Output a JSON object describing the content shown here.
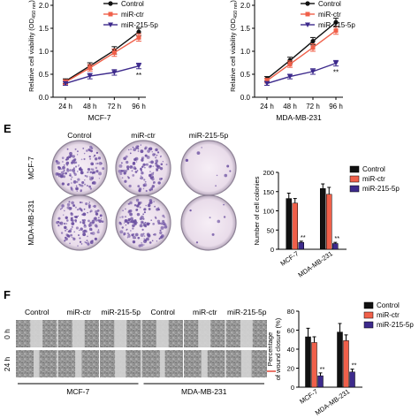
{
  "colors": {
    "control": "#111111",
    "mir_ctr": "#f0604a",
    "mir_215": "#3d2a8c",
    "dish_stain": "#6a4ea0",
    "cells_gray": "#9a9a9a"
  },
  "chart_data": [
    {
      "type": "line",
      "title": "",
      "xlabel": "MCF-7",
      "ylabel": "Relative cell viability (OD450 nm)",
      "ylabel_main": "Relative cell viability (OD",
      "ylabel_sub": "450 nm",
      "ylabel_end": ")",
      "categories": [
        "24 h",
        "48 h",
        "72 h",
        "96 h"
      ],
      "ylim": [
        0,
        2.0
      ],
      "yticks": [
        "0.0",
        "0.5",
        "1.0",
        "1.5",
        "2.0"
      ],
      "series": [
        {
          "name": "Control",
          "values": [
            0.35,
            0.68,
            1.02,
            1.42
          ],
          "err": [
            0.05,
            0.07,
            0.08,
            0.08
          ]
        },
        {
          "name": "miR-ctr",
          "values": [
            0.33,
            0.64,
            0.97,
            1.3
          ],
          "err": [
            0.05,
            0.07,
            0.08,
            0.08
          ]
        },
        {
          "name": "miR-215-5p",
          "values": [
            0.3,
            0.46,
            0.54,
            0.68
          ],
          "err": [
            0.04,
            0.06,
            0.06,
            0.06
          ]
        }
      ],
      "annotations": [
        {
          "category": "96 h",
          "text": "**"
        }
      ]
    },
    {
      "type": "line",
      "title": "",
      "xlabel": "MDA-MB-231",
      "ylabel": "Relative cell viability (OD450 nm)",
      "ylabel_main": "Relative cell viability (OD",
      "ylabel_sub": "450 nm",
      "ylabel_end": ")",
      "categories": [
        "24 h",
        "48 h",
        "72 h",
        "96 h"
      ],
      "ylim": [
        0,
        2.0
      ],
      "yticks": [
        "0.0",
        "0.5",
        "1.0",
        "1.5",
        "2.0"
      ],
      "series": [
        {
          "name": "Control",
          "values": [
            0.4,
            0.8,
            1.22,
            1.63
          ],
          "err": [
            0.05,
            0.07,
            0.08,
            0.09
          ]
        },
        {
          "name": "miR-ctr",
          "values": [
            0.36,
            0.72,
            1.08,
            1.45
          ],
          "err": [
            0.05,
            0.07,
            0.08,
            0.08
          ]
        },
        {
          "name": "miR-215-5p",
          "values": [
            0.3,
            0.45,
            0.56,
            0.74
          ],
          "err": [
            0.04,
            0.05,
            0.06,
            0.06
          ]
        }
      ],
      "annotations": [
        {
          "category": "96 h",
          "text": "**"
        }
      ]
    },
    {
      "type": "bar",
      "title": "",
      "xlabel": "",
      "ylabel": "Number of cell colonies",
      "categories": [
        "MCF-7",
        "MDA-MB-231"
      ],
      "ylim": [
        0,
        200
      ],
      "yticks": [
        "0",
        "50",
        "100",
        "150",
        "200"
      ],
      "series": [
        {
          "name": "Control",
          "values": [
            132,
            158
          ],
          "err": [
            14,
            12
          ]
        },
        {
          "name": "miR-ctr",
          "values": [
            120,
            143
          ],
          "err": [
            12,
            18
          ]
        },
        {
          "name": "miR-215-5p",
          "values": [
            18,
            15
          ],
          "err": [
            3,
            3
          ]
        }
      ],
      "annotations": [
        "**",
        "**"
      ]
    },
    {
      "type": "bar",
      "title": "",
      "xlabel": "",
      "ylabel": "Percentage of wound closure (%)",
      "ylabel_line1": "Percentage",
      "ylabel_line2": "of wound closure (%)",
      "categories": [
        "MCF-7",
        "MDA-MB-231"
      ],
      "ylim": [
        0,
        80
      ],
      "yticks": [
        "0",
        "20",
        "40",
        "60",
        "80"
      ],
      "series": [
        {
          "name": "Control",
          "values": [
            53,
            58
          ],
          "err": [
            9,
            9
          ]
        },
        {
          "name": "miR-ctr",
          "values": [
            47,
            49
          ],
          "err": [
            6,
            6
          ]
        },
        {
          "name": "miR-215-5p",
          "values": [
            12,
            16
          ],
          "err": [
            3,
            3
          ]
        }
      ],
      "annotations": [
        "**",
        "**"
      ]
    }
  ],
  "panel_e": {
    "letter": "E",
    "columns": [
      "Control",
      "miR-ctr",
      "miR-215-5p"
    ],
    "rows": [
      "MCF-7",
      "MDA-MB-231"
    ],
    "colony_density": [
      [
        1.0,
        0.9,
        0.06
      ],
      [
        1.0,
        0.95,
        0.05
      ]
    ]
  },
  "panel_f": {
    "letter": "F",
    "columns": [
      "Control",
      "miR-ctr",
      "miR-215-5p",
      "Control",
      "miR-ctr",
      "miR-215-5p"
    ],
    "rows": [
      "0 h",
      "24 h"
    ],
    "group_labels": [
      "MCF-7",
      "MDA-MB-231"
    ],
    "closure": [
      0.53,
      0.47,
      0.12,
      0.58,
      0.49,
      0.16
    ]
  }
}
